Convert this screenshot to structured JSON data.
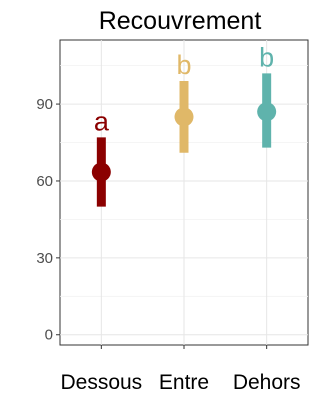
{
  "chart_data": {
    "type": "scatter",
    "title": "Recouvrement",
    "xlabel": "",
    "ylabel": "",
    "categories": [
      "Dessous",
      "Entre",
      "Dehors"
    ],
    "ylim": [
      -4,
      115
    ],
    "yticks": [
      0,
      30,
      60,
      90
    ],
    "ytick_labels": [
      "0",
      "30",
      "60",
      "90"
    ],
    "grid": true,
    "legend": "none",
    "points": [
      {
        "category": "Dessous",
        "value": 63.5,
        "lower": 50,
        "upper": 77,
        "group_label": "a",
        "color": "#8b0000"
      },
      {
        "category": "Entre",
        "value": 85,
        "lower": 71,
        "upper": 99,
        "group_label": "b",
        "color": "#e0b868"
      },
      {
        "category": "Dehors",
        "value": 87,
        "lower": 73,
        "upper": 102,
        "group_label": "b",
        "color": "#5fb3ac"
      }
    ]
  }
}
